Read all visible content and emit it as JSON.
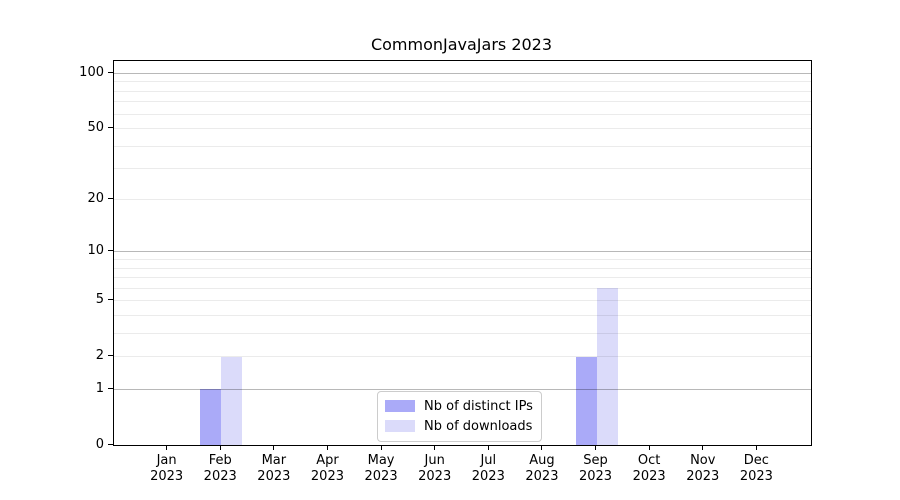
{
  "chart_data": {
    "type": "bar",
    "title": "CommonJavaJars 2023",
    "categories": [
      "Jan",
      "Feb",
      "Mar",
      "Apr",
      "May",
      "Jun",
      "Jul",
      "Aug",
      "Sep",
      "Oct",
      "Nov",
      "Dec"
    ],
    "year_label": "2023",
    "series": [
      {
        "name": "Nb of distinct IPs",
        "color": "#aaaaf8",
        "values": [
          0,
          1,
          0,
          0,
          0,
          0,
          0,
          0,
          2,
          0,
          0,
          0
        ]
      },
      {
        "name": "Nb of downloads",
        "color": "#dbdbfa",
        "values": [
          0,
          2,
          0,
          0,
          0,
          0,
          0,
          0,
          6,
          0,
          0,
          0
        ]
      }
    ],
    "xlabel": "",
    "ylabel": "",
    "yscale": "log1p",
    "ylim": [
      0,
      117
    ],
    "yticks": [
      0,
      1,
      2,
      5,
      10,
      20,
      50,
      100
    ],
    "major_grid_values": [
      1,
      10,
      100
    ],
    "minor_grid_values": [
      2,
      3,
      4,
      5,
      6,
      7,
      8,
      9,
      20,
      30,
      40,
      50,
      60,
      70,
      80,
      90
    ],
    "grid": true,
    "legend_position": "lower center"
  },
  "colors": {
    "background": "#ffffff",
    "spine": "#000000",
    "text": "#000000",
    "major_grid": "#b8b8b8",
    "minor_grid": "#ececec",
    "legend_border": "#cccccc"
  }
}
